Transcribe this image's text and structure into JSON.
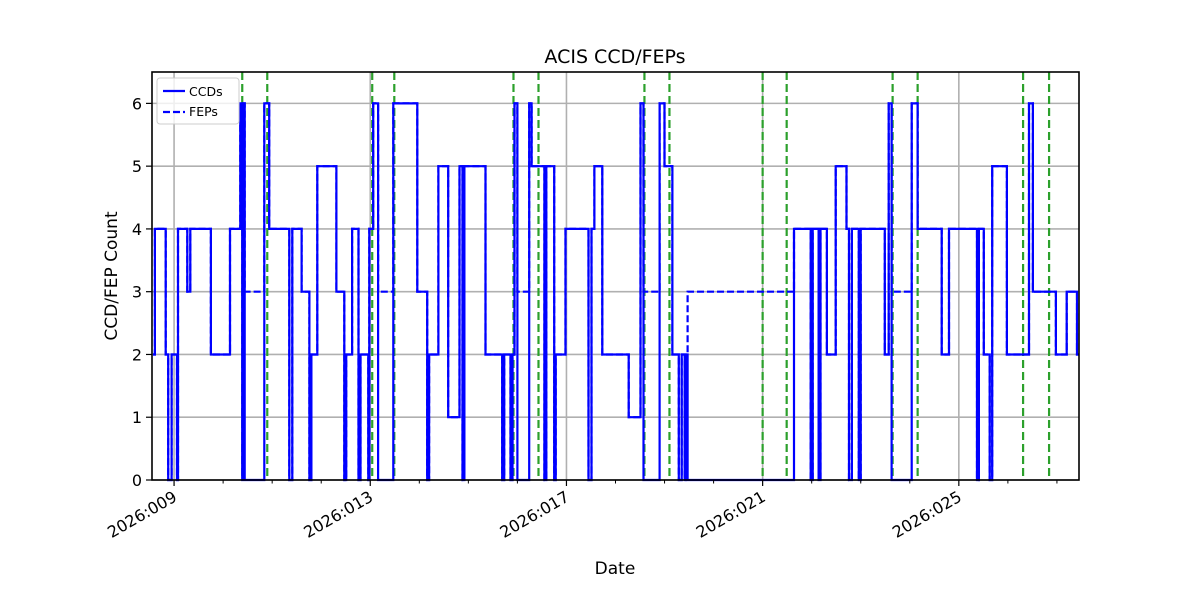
{
  "chart_data": {
    "type": "line",
    "subtype": "step",
    "title": "ACIS CCD/FEPs",
    "xlabel": "Date",
    "ylabel": "CCD/FEP Count",
    "x_unit": "day-of-year 2026",
    "xlim": [
      8.55,
      27.45
    ],
    "ylim": [
      0,
      6.5
    ],
    "grid": true,
    "legend_position": "upper left",
    "x_ticks": [
      {
        "value": 9,
        "label": "2026:009"
      },
      {
        "value": 13,
        "label": "2026:013"
      },
      {
        "value": 17,
        "label": "2026:017"
      },
      {
        "value": 21,
        "label": "2026:021"
      },
      {
        "value": 25,
        "label": "2026:025"
      }
    ],
    "x_minor_ticks": [
      10,
      11,
      12,
      14,
      15,
      16,
      18,
      19,
      20,
      22,
      23,
      24,
      26,
      27
    ],
    "y_ticks": [
      0,
      1,
      2,
      3,
      4,
      5,
      6
    ],
    "legend": [
      {
        "name": "CCDs",
        "style": "solid",
        "color": "#0000ff"
      },
      {
        "name": "FEPs",
        "style": "dashed",
        "color": "#0000ff"
      }
    ],
    "series": [
      {
        "name": "CCDs",
        "color": "#0000ff",
        "style": "solid",
        "steps": [
          [
            8.57,
            2
          ],
          [
            8.61,
            4
          ],
          [
            8.83,
            2
          ],
          [
            8.88,
            0
          ],
          [
            8.95,
            2
          ],
          [
            9.06,
            0
          ],
          [
            9.08,
            4
          ],
          [
            9.27,
            3
          ],
          [
            9.33,
            4
          ],
          [
            9.75,
            2
          ],
          [
            10.14,
            4
          ],
          [
            10.35,
            6
          ],
          [
            10.39,
            0
          ],
          [
            10.41,
            6
          ],
          [
            10.44,
            0
          ],
          [
            10.84,
            6
          ],
          [
            10.94,
            4
          ],
          [
            11.35,
            0
          ],
          [
            11.41,
            4
          ],
          [
            11.6,
            3
          ],
          [
            11.76,
            0
          ],
          [
            11.8,
            2
          ],
          [
            11.92,
            5
          ],
          [
            12.31,
            3
          ],
          [
            12.47,
            0
          ],
          [
            12.51,
            2
          ],
          [
            12.63,
            4
          ],
          [
            12.76,
            0
          ],
          [
            12.8,
            2
          ],
          [
            12.96,
            0
          ],
          [
            12.98,
            4
          ],
          [
            13.06,
            6
          ],
          [
            13.16,
            0
          ],
          [
            13.47,
            6
          ],
          [
            13.55,
            6
          ],
          [
            13.96,
            3
          ],
          [
            14.16,
            0
          ],
          [
            14.2,
            2
          ],
          [
            14.39,
            5
          ],
          [
            14.59,
            1
          ],
          [
            14.82,
            5
          ],
          [
            14.88,
            0
          ],
          [
            14.92,
            5
          ],
          [
            15.35,
            2
          ],
          [
            15.69,
            0
          ],
          [
            15.73,
            2
          ],
          [
            15.86,
            0
          ],
          [
            15.9,
            2
          ],
          [
            15.94,
            6
          ],
          [
            16.0,
            0
          ],
          [
            16.24,
            6
          ],
          [
            16.29,
            5
          ],
          [
            16.55,
            0
          ],
          [
            16.59,
            5
          ],
          [
            16.75,
            0
          ],
          [
            16.78,
            2
          ],
          [
            16.98,
            4
          ],
          [
            17.45,
            0
          ],
          [
            17.51,
            4
          ],
          [
            17.57,
            5
          ],
          [
            17.73,
            2
          ],
          [
            18.27,
            1
          ],
          [
            18.51,
            6
          ],
          [
            18.57,
            0
          ],
          [
            18.9,
            6
          ],
          [
            19.0,
            5
          ],
          [
            19.16,
            2
          ],
          [
            19.29,
            0
          ],
          [
            19.35,
            2
          ],
          [
            19.41,
            0
          ],
          [
            19.43,
            2
          ],
          [
            19.47,
            0
          ],
          [
            20.98,
            0
          ],
          [
            21.64,
            4
          ],
          [
            21.98,
            0
          ],
          [
            22.02,
            4
          ],
          [
            22.14,
            0
          ],
          [
            22.18,
            4
          ],
          [
            22.31,
            2
          ],
          [
            22.49,
            5
          ],
          [
            22.71,
            4
          ],
          [
            22.76,
            0
          ],
          [
            22.82,
            4
          ],
          [
            22.96,
            0
          ],
          [
            23.0,
            4
          ],
          [
            23.49,
            2
          ],
          [
            23.57,
            6
          ],
          [
            23.63,
            0
          ],
          [
            24.04,
            6
          ],
          [
            24.16,
            4
          ],
          [
            24.65,
            2
          ],
          [
            24.8,
            4
          ],
          [
            25.14,
            4
          ],
          [
            25.37,
            0
          ],
          [
            25.41,
            4
          ],
          [
            25.51,
            2
          ],
          [
            25.63,
            0
          ],
          [
            25.68,
            5
          ],
          [
            25.98,
            2
          ],
          [
            26.43,
            6
          ],
          [
            26.51,
            3
          ],
          [
            26.98,
            2
          ],
          [
            27.2,
            3
          ],
          [
            27.41,
            2
          ]
        ]
      },
      {
        "name": "FEPs",
        "color": "#0000ff",
        "style": "dashed",
        "steps": [
          [
            8.57,
            2
          ],
          [
            8.61,
            4
          ],
          [
            8.83,
            2
          ],
          [
            8.88,
            0
          ],
          [
            8.95,
            2
          ],
          [
            9.06,
            0
          ],
          [
            9.08,
            4
          ],
          [
            9.27,
            3
          ],
          [
            9.33,
            4
          ],
          [
            9.75,
            2
          ],
          [
            10.14,
            4
          ],
          [
            10.35,
            6
          ],
          [
            10.44,
            3
          ],
          [
            10.84,
            6
          ],
          [
            10.94,
            4
          ],
          [
            11.35,
            0
          ],
          [
            11.41,
            4
          ],
          [
            11.6,
            3
          ],
          [
            11.76,
            0
          ],
          [
            11.8,
            2
          ],
          [
            11.92,
            5
          ],
          [
            12.31,
            3
          ],
          [
            12.47,
            0
          ],
          [
            12.51,
            2
          ],
          [
            12.63,
            4
          ],
          [
            12.76,
            0
          ],
          [
            12.8,
            2
          ],
          [
            12.96,
            0
          ],
          [
            12.98,
            4
          ],
          [
            13.06,
            6
          ],
          [
            13.16,
            3
          ],
          [
            13.47,
            6
          ],
          [
            13.96,
            3
          ],
          [
            14.16,
            0
          ],
          [
            14.2,
            2
          ],
          [
            14.39,
            5
          ],
          [
            14.59,
            1
          ],
          [
            14.82,
            5
          ],
          [
            14.88,
            0
          ],
          [
            14.92,
            5
          ],
          [
            15.35,
            2
          ],
          [
            15.69,
            0
          ],
          [
            15.73,
            2
          ],
          [
            15.86,
            0
          ],
          [
            15.9,
            2
          ],
          [
            15.94,
            6
          ],
          [
            16.0,
            3
          ],
          [
            16.24,
            6
          ],
          [
            16.29,
            5
          ],
          [
            16.55,
            0
          ],
          [
            16.59,
            5
          ],
          [
            16.75,
            0
          ],
          [
            16.78,
            2
          ],
          [
            16.98,
            4
          ],
          [
            17.45,
            0
          ],
          [
            17.51,
            4
          ],
          [
            17.57,
            5
          ],
          [
            17.73,
            2
          ],
          [
            18.27,
            1
          ],
          [
            18.51,
            6
          ],
          [
            18.57,
            3
          ],
          [
            18.9,
            6
          ],
          [
            19.0,
            5
          ],
          [
            19.16,
            2
          ],
          [
            19.29,
            0
          ],
          [
            19.35,
            2
          ],
          [
            19.41,
            0
          ],
          [
            19.43,
            2
          ],
          [
            19.47,
            3
          ],
          [
            21.64,
            4
          ],
          [
            21.98,
            0
          ],
          [
            22.02,
            4
          ],
          [
            22.14,
            0
          ],
          [
            22.18,
            4
          ],
          [
            22.31,
            2
          ],
          [
            22.49,
            5
          ],
          [
            22.71,
            4
          ],
          [
            22.76,
            0
          ],
          [
            22.82,
            4
          ],
          [
            22.96,
            0
          ],
          [
            23.0,
            4
          ],
          [
            23.49,
            2
          ],
          [
            23.57,
            6
          ],
          [
            23.63,
            3
          ],
          [
            24.04,
            6
          ],
          [
            24.16,
            4
          ],
          [
            24.65,
            2
          ],
          [
            24.8,
            4
          ],
          [
            25.14,
            4
          ],
          [
            25.37,
            0
          ],
          [
            25.41,
            4
          ],
          [
            25.51,
            2
          ],
          [
            25.63,
            0
          ],
          [
            25.68,
            5
          ],
          [
            25.98,
            2
          ],
          [
            26.43,
            6
          ],
          [
            26.51,
            3
          ],
          [
            26.98,
            2
          ],
          [
            27.2,
            3
          ],
          [
            27.41,
            2
          ]
        ]
      }
    ],
    "vertical_markers": {
      "color": "#2ca02c",
      "style": "dashed",
      "x": [
        10.39,
        10.9,
        13.04,
        13.49,
        15.92,
        16.43,
        18.59,
        19.1,
        21.0,
        21.49,
        23.65,
        24.16,
        26.31,
        26.84
      ]
    }
  }
}
